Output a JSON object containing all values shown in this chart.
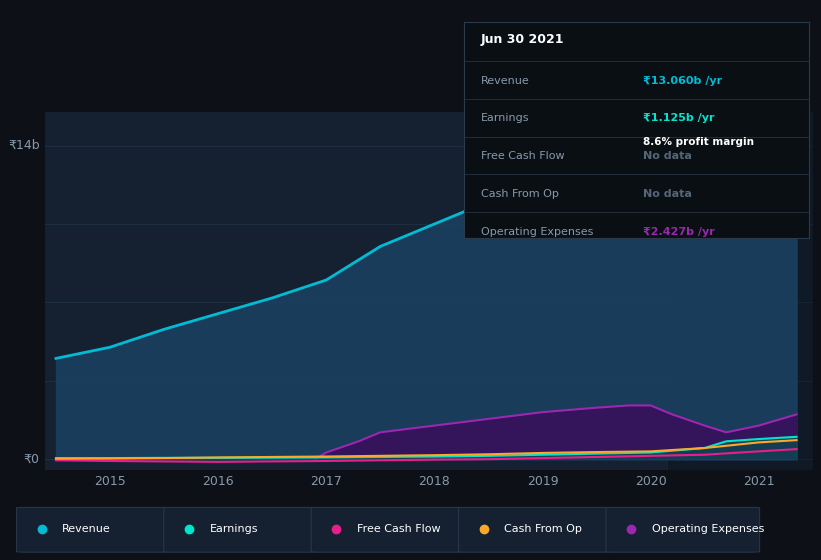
{
  "bg_color": "#0d1117",
  "plot_bg": "#152030",
  "y_label_top": "₹14b",
  "y_label_bottom": "₹0",
  "x_ticks": [
    2015,
    2016,
    2017,
    2018,
    2019,
    2020,
    2021
  ],
  "tooltip": {
    "date": "Jun 30 2021",
    "revenue_label": "Revenue",
    "revenue_value": "₹13.060b /yr",
    "earnings_label": "Earnings",
    "earnings_value": "₹1.125b /yr",
    "earnings_margin": "8.6% profit margin",
    "fcf_label": "Free Cash Flow",
    "fcf_value": "No data",
    "cfop_label": "Cash From Op",
    "cfop_value": "No data",
    "opex_label": "Operating Expenses",
    "opex_value": "₹2.427b /yr"
  },
  "series": {
    "revenue": {
      "color": "#00bcd4",
      "fill_color": "#1a4060",
      "data_x": [
        2014.5,
        2015.0,
        2015.5,
        2016.0,
        2016.5,
        2017.0,
        2017.5,
        2018.0,
        2018.5,
        2019.0,
        2019.3,
        2019.5,
        2020.0,
        2020.2,
        2020.5,
        2020.7,
        2021.0,
        2021.35
      ],
      "data_y": [
        4.5,
        5.0,
        5.8,
        6.5,
        7.2,
        8.0,
        9.5,
        10.5,
        11.5,
        13.0,
        13.5,
        13.5,
        13.2,
        12.5,
        11.0,
        10.5,
        12.0,
        13.5
      ]
    },
    "earnings": {
      "color": "#00e5cc",
      "fill_color": "#005a50",
      "data_x": [
        2014.5,
        2015.0,
        2015.5,
        2016.0,
        2016.5,
        2017.0,
        2017.5,
        2018.0,
        2018.5,
        2019.0,
        2019.5,
        2020.0,
        2020.5,
        2020.7,
        2021.0,
        2021.35
      ],
      "data_y": [
        0.05,
        0.05,
        0.06,
        0.06,
        0.07,
        0.08,
        0.1,
        0.12,
        0.15,
        0.2,
        0.25,
        0.3,
        0.5,
        0.8,
        0.9,
        1.0
      ]
    },
    "fcf": {
      "color": "#e91e8c",
      "data_x": [
        2014.5,
        2015.0,
        2015.5,
        2016.0,
        2016.5,
        2017.0,
        2017.5,
        2018.0,
        2018.5,
        2019.0,
        2019.5,
        2020.0,
        2020.5,
        2021.0,
        2021.35
      ],
      "data_y": [
        -0.05,
        -0.08,
        -0.1,
        -0.12,
        -0.1,
        -0.08,
        -0.05,
        -0.02,
        0.0,
        0.05,
        0.1,
        0.15,
        0.2,
        0.35,
        0.45
      ]
    },
    "cash_from_op": {
      "color": "#ffa726",
      "data_x": [
        2014.5,
        2015.0,
        2015.5,
        2016.0,
        2016.5,
        2017.0,
        2017.5,
        2018.0,
        2018.5,
        2019.0,
        2019.5,
        2020.0,
        2020.5,
        2021.0,
        2021.35
      ],
      "data_y": [
        0.02,
        0.03,
        0.05,
        0.08,
        0.1,
        0.12,
        0.15,
        0.18,
        0.22,
        0.28,
        0.32,
        0.35,
        0.5,
        0.75,
        0.85
      ]
    },
    "operating_expenses": {
      "color": "#9c27b0",
      "fill_color": "#3a0e5a",
      "data_x": [
        2016.9,
        2017.0,
        2017.3,
        2017.5,
        2018.0,
        2018.5,
        2019.0,
        2019.5,
        2019.8,
        2020.0,
        2020.2,
        2020.5,
        2020.7,
        2021.0,
        2021.35
      ],
      "data_y": [
        0.0,
        0.3,
        0.8,
        1.2,
        1.5,
        1.8,
        2.1,
        2.3,
        2.4,
        2.4,
        2.0,
        1.5,
        1.2,
        1.5,
        2.0
      ]
    }
  },
  "vertical_line_x": 2020.15,
  "ylim": [
    -0.5,
    15.5
  ],
  "xlim": [
    2014.4,
    2021.5
  ],
  "legend_items": [
    {
      "label": "Revenue",
      "color": "#00bcd4"
    },
    {
      "label": "Earnings",
      "color": "#00e5cc"
    },
    {
      "label": "Free Cash Flow",
      "color": "#e91e8c"
    },
    {
      "label": "Cash From Op",
      "color": "#ffa726"
    },
    {
      "label": "Operating Expenses",
      "color": "#9c27b0"
    }
  ]
}
